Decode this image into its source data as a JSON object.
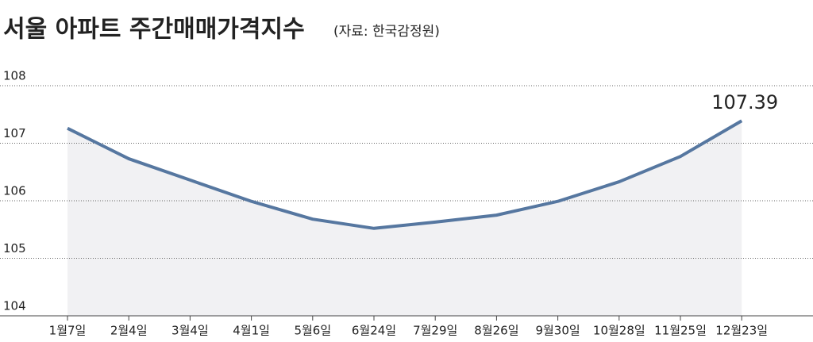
{
  "chart_data": {
    "type": "line",
    "title": "서울 아파트 주간매매가격지수",
    "subtitle": "(자료: 한국감정원)",
    "categories": [
      "1월7일",
      "2월4일",
      "3월4일",
      "4월1일",
      "5월6일",
      "6월24일",
      "7월29일",
      "8월26일",
      "9월30일",
      "10월28일",
      "11월25일",
      "12월23일"
    ],
    "values": [
      107.26,
      106.73,
      106.36,
      105.99,
      105.68,
      105.52,
      105.63,
      105.75,
      105.99,
      106.33,
      106.77,
      107.39
    ],
    "color": "#5677a0",
    "ylim": [
      104,
      108
    ],
    "yticks": [
      104,
      105,
      106,
      107,
      108
    ],
    "grid": true
  }
}
